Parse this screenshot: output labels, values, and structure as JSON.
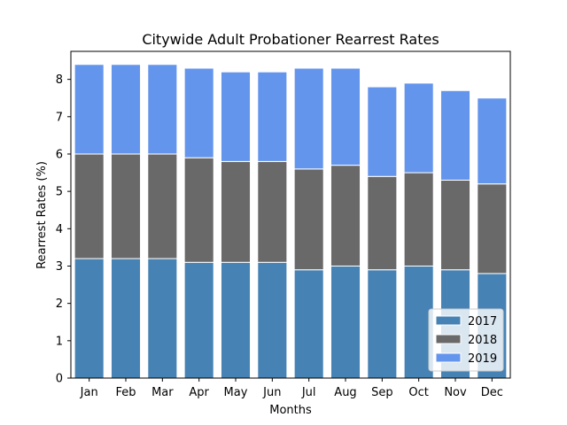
{
  "chart_data": {
    "type": "bar",
    "stacked": true,
    "title": "Citywide Adult Probationer Rearrest Rates",
    "xlabel": "Months",
    "ylabel": "Rearrest Rates (%)",
    "ylim": [
      0,
      8.75
    ],
    "yticks": [
      0,
      1,
      2,
      3,
      4,
      5,
      6,
      7,
      8
    ],
    "grid": false,
    "legend_position": "bottom-right",
    "categories": [
      "Jan",
      "Feb",
      "Mar",
      "Apr",
      "May",
      "Jun",
      "Jul",
      "Aug",
      "Sep",
      "Oct",
      "Nov",
      "Dec"
    ],
    "series": [
      {
        "name": "2017",
        "color": "#4682b4",
        "values": [
          3.2,
          3.2,
          3.2,
          3.1,
          3.1,
          3.1,
          2.9,
          3.0,
          2.9,
          3.0,
          2.9,
          2.8
        ]
      },
      {
        "name": "2018",
        "color": "#696969",
        "values": [
          2.8,
          2.8,
          2.8,
          2.8,
          2.7,
          2.7,
          2.7,
          2.7,
          2.5,
          2.5,
          2.4,
          2.4
        ]
      },
      {
        "name": "2019",
        "color": "#6495ed",
        "values": [
          2.4,
          2.4,
          2.4,
          2.4,
          2.4,
          2.4,
          2.7,
          2.6,
          2.4,
          2.4,
          2.4,
          2.3
        ]
      }
    ]
  }
}
